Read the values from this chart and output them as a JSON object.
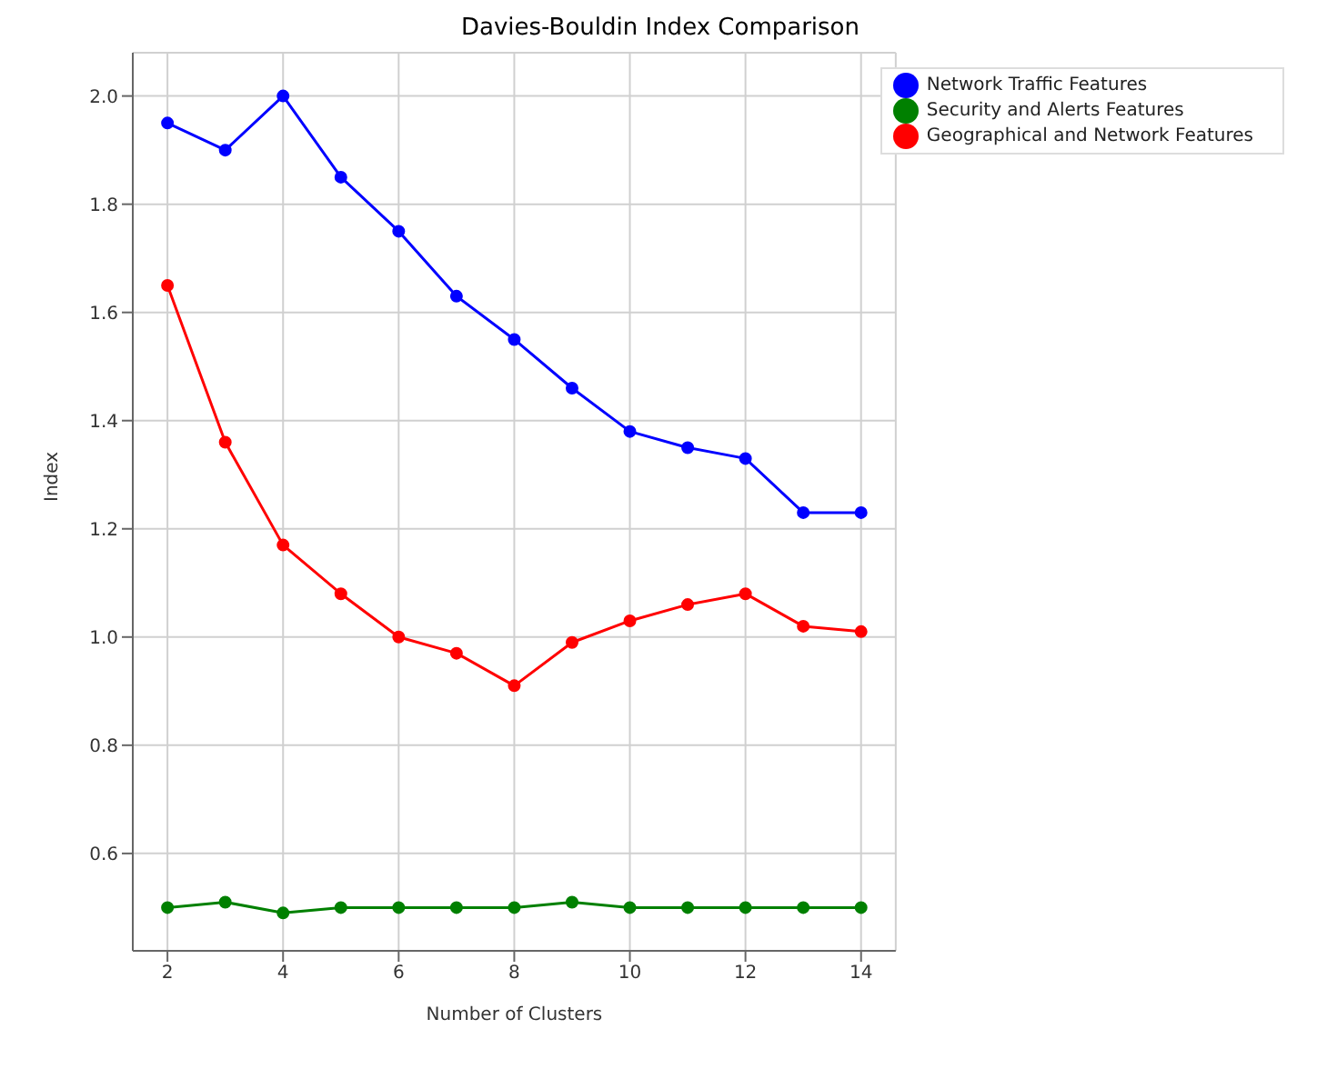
{
  "chart_data": {
    "type": "line",
    "title": "Davies-Bouldin Index Comparison",
    "xlabel": "Number of Clusters",
    "ylabel": "Index",
    "x": [
      2,
      3,
      4,
      5,
      6,
      7,
      8,
      9,
      10,
      11,
      12,
      13,
      14
    ],
    "series": [
      {
        "name": "Network Traffic Features",
        "color": "#0000ff",
        "values": [
          1.95,
          1.9,
          2.0,
          1.85,
          1.75,
          1.63,
          1.55,
          1.46,
          1.38,
          1.35,
          1.33,
          1.23,
          1.23
        ]
      },
      {
        "name": "Security and Alerts Features",
        "color": "#008000",
        "values": [
          0.5,
          0.51,
          0.49,
          0.5,
          0.5,
          0.5,
          0.5,
          0.51,
          0.5,
          0.5,
          0.5,
          0.5,
          0.5
        ]
      },
      {
        "name": "Geographical and Network Features",
        "color": "#ff0000",
        "values": [
          1.65,
          1.36,
          1.17,
          1.08,
          1.0,
          0.97,
          0.91,
          0.99,
          1.03,
          1.06,
          1.08,
          1.02,
          1.01
        ]
      }
    ],
    "xlim": [
      1.4,
      14.6
    ],
    "xticks": [
      2,
      4,
      6,
      8,
      10,
      12,
      14
    ],
    "ylim": [
      0.42,
      2.08
    ],
    "yticks": [
      0.6,
      0.8,
      {
        "value": 1,
        "label": "1.0"
      },
      1.2,
      1.4,
      1.6,
      1.8,
      {
        "value": 2,
        "label": "2.0"
      }
    ],
    "grid": true,
    "legend": "top right",
    "marker": "circle",
    "line_style": "solid"
  }
}
